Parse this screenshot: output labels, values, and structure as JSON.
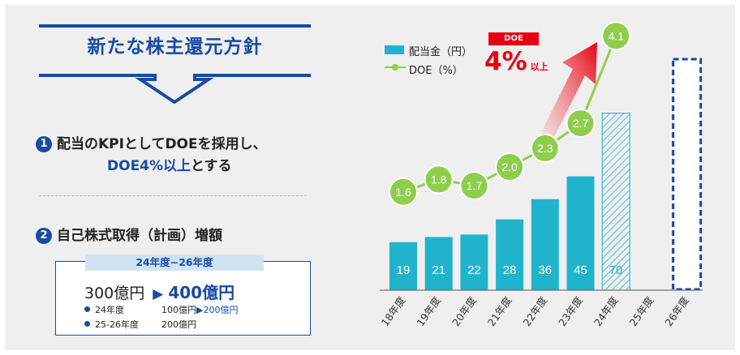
{
  "header": {
    "title": "新たな株主還元方針"
  },
  "point1": {
    "number": "1",
    "line1": "配当のKPIとしてDOEを採用し、",
    "line2_em": "DOE4%以上",
    "line2_rest": "とする"
  },
  "point2": {
    "number": "2",
    "text": "自己株式取得（計画）増額"
  },
  "buyback": {
    "period": "24年度−26年度",
    "from": "300億円",
    "arrow": "▶",
    "to": "400億円",
    "details": [
      {
        "label": "24年度",
        "value": "100億円",
        "arrow": "▶",
        "to": "200億円"
      },
      {
        "label": "25-26年度",
        "value": "200億円",
        "arrow": "",
        "to": ""
      }
    ]
  },
  "callout": {
    "label": "DOE",
    "value": "4%",
    "suffix": "以上"
  },
  "colors": {
    "navy": "#1a4aa3",
    "bar": "#22b3cc",
    "line": "#8fce4c",
    "red": "#e60012"
  },
  "chart_data": {
    "type": "bar",
    "categories": [
      "18年度",
      "19年度",
      "20年度",
      "21年度",
      "22年度",
      "23年度",
      "24年度",
      "25年度",
      "26年度"
    ],
    "series": [
      {
        "name": "配当金（円）",
        "type": "bar",
        "values": [
          19,
          21,
          22,
          28,
          36,
          45,
          70,
          null,
          null
        ],
        "labels": [
          "19",
          "21",
          "22",
          "28",
          "36",
          "45",
          "70",
          "",
          ""
        ]
      },
      {
        "name": "DOE（%）",
        "type": "line",
        "values": [
          1.6,
          1.8,
          1.7,
          2.0,
          2.3,
          2.7,
          4.1,
          null,
          null
        ],
        "labels": [
          "1.6",
          "1.8",
          "1.7",
          "2.0",
          "2.3",
          "2.7",
          "4.1",
          "",
          ""
        ]
      }
    ],
    "forecast_bar": "24年度",
    "target_bar": "26年度",
    "legend": [
      {
        "label": "配当金（円）",
        "marker": "bar"
      },
      {
        "label": "DOE（%）",
        "marker": "line"
      }
    ],
    "legend_position": "top-left"
  }
}
